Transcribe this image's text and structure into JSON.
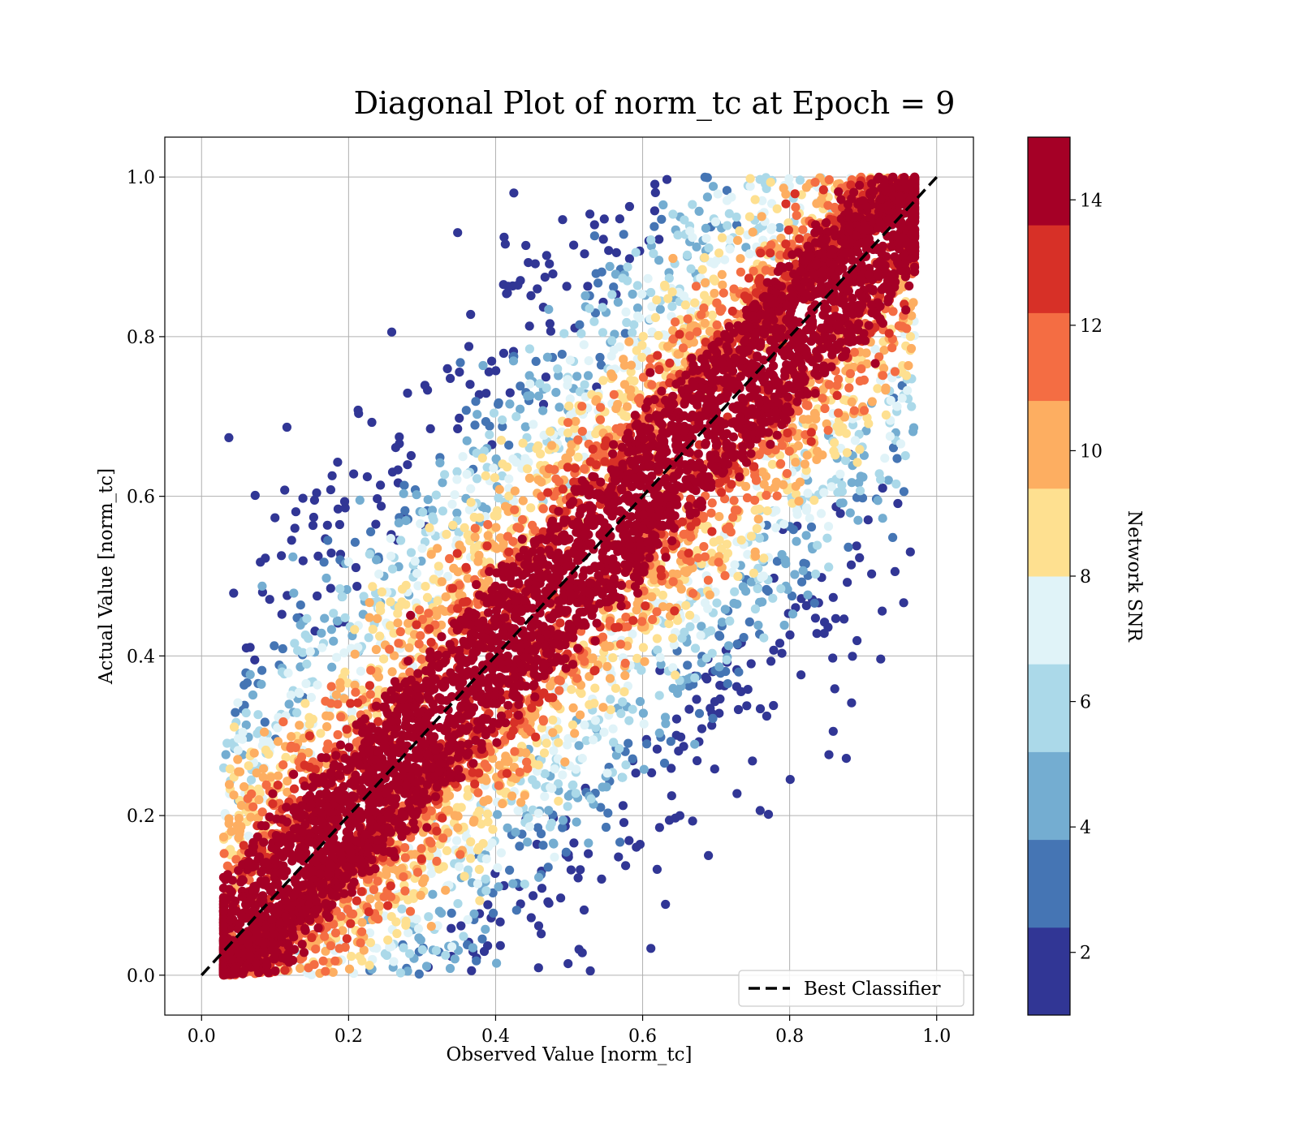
{
  "chart_data": {
    "type": "scatter",
    "title": "Diagonal Plot of norm_tc at Epoch = 9",
    "xlabel": "Observed Value [norm_tc]",
    "ylabel": "Actual Value [norm_tc]",
    "xlim": [
      -0.05,
      1.05
    ],
    "ylim": [
      -0.05,
      1.05
    ],
    "xticks": [
      "0.0",
      "0.2",
      "0.4",
      "0.6",
      "0.8",
      "1.0"
    ],
    "yticks": [
      "0.0",
      "0.2",
      "0.4",
      "0.6",
      "0.8",
      "1.0"
    ],
    "grid": true,
    "colorbar": {
      "label": "Network SNR",
      "range": [
        1,
        15
      ],
      "ticks": [
        "2",
        "4",
        "6",
        "8",
        "10",
        "12",
        "14"
      ],
      "colors": [
        "#313695",
        "#4575b4",
        "#74add1",
        "#abd9e9",
        "#e0f3f8",
        "#fee090",
        "#fdae61",
        "#f46d43",
        "#d73027",
        "#a50026"
      ]
    },
    "reference_line": {
      "name": "Best Classifier",
      "style": "dashed",
      "color": "#000000",
      "points": [
        [
          0,
          0
        ],
        [
          1,
          1
        ]
      ]
    },
    "legend": {
      "position": "bottom-right",
      "entries": [
        "Best Classifier"
      ]
    },
    "distribution": {
      "y_range": [
        0,
        1
      ],
      "observed_min_offset": 0.03,
      "observed_max_offset": 0.03,
      "core_band_width": 0.09,
      "snr_band_scale": 0.065,
      "scatter_spread": 0.33
    }
  }
}
